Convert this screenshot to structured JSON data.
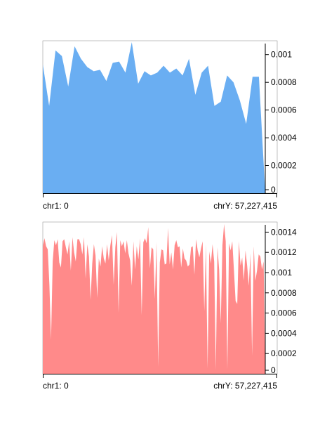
{
  "chart_data": [
    {
      "type": "area",
      "color": "#6aaef2",
      "x_start_label": "chr1: 0",
      "x_end_label": "chrY: 57,227,415",
      "ylim": [
        0,
        0.0011
      ],
      "y_ticks": [
        {
          "value": 0,
          "label": "0"
        },
        {
          "value": 0.0002,
          "label": "0.0002"
        },
        {
          "value": 0.0004,
          "label": "0.0004"
        },
        {
          "value": 0.0006,
          "label": "0.0006"
        },
        {
          "value": 0.0008,
          "label": "0.0008"
        },
        {
          "value": 0.001,
          "label": "0.001"
        }
      ],
      "values": [
        0.00093,
        0.00063,
        0.00103,
        0.00099,
        0.00077,
        0.00106,
        0.00097,
        0.00091,
        0.00088,
        0.00089,
        0.00081,
        0.00094,
        0.00095,
        0.00087,
        0.00109,
        0.00079,
        0.00088,
        0.00085,
        0.00087,
        0.00092,
        0.00087,
        0.0009,
        0.00085,
        0.00097,
        0.00071,
        0.00087,
        0.00092,
        0.00063,
        0.00066,
        0.00085,
        0.0008,
        0.00067,
        0.0005,
        0.00084,
        0.00084,
        0.0
      ]
    },
    {
      "type": "area",
      "color": "#ff8a8a",
      "x_start_label": "chr1: 0",
      "x_end_label": "chrY: 57,227,415",
      "ylim": [
        0,
        0.0015
      ],
      "y_ticks": [
        {
          "value": 0,
          "label": "0"
        },
        {
          "value": 0.0002,
          "label": "0.0002"
        },
        {
          "value": 0.0004,
          "label": "0.0004"
        },
        {
          "value": 0.0006,
          "label": "0.0006"
        },
        {
          "value": 0.0008,
          "label": "0.0008"
        },
        {
          "value": 0.001,
          "label": "0.001"
        },
        {
          "value": 0.0012,
          "label": "0.0012"
        },
        {
          "value": 0.0014,
          "label": "0.0014"
        }
      ],
      "values": [
        0.00126,
        0.00134,
        0.00126,
        0.00123,
        0.00088,
        0.00034,
        0.00111,
        0.00132,
        0.00127,
        0.00133,
        0.0011,
        0.00105,
        0.00131,
        0.00133,
        0.00125,
        0.00118,
        0.00131,
        0.00102,
        0.00135,
        0.0012,
        0.00111,
        0.00133,
        0.00133,
        0.00128,
        0.00118,
        0.00135,
        0.00094,
        0.00128,
        0.00116,
        0.00073,
        0.00109,
        0.00128,
        0.00117,
        0.00075,
        0.00114,
        0.00106,
        0.00126,
        0.00114,
        0.00109,
        0.00128,
        0.00112,
        0.00127,
        0.00137,
        0.00088,
        0.00125,
        0.0014,
        0.0006,
        0.00132,
        0.00126,
        0.00131,
        0.00119,
        0.00132,
        0.00119,
        0.00112,
        0.00087,
        0.00131,
        0.00103,
        0.00126,
        0.00113,
        0.00134,
        0.00058,
        0.0013,
        0.00134,
        0.00129,
        0.00145,
        0.00104,
        0.00125,
        0.00123,
        0.00074,
        0.0013,
        7e-05,
        0.0011,
        0.00123,
        0.00122,
        0.00108,
        0.00109,
        0.00144,
        0.00108,
        0.0012,
        0.00103,
        0.00127,
        0.00132,
        0.00125,
        0.00126,
        0.00105,
        0.00124,
        0.00114,
        0.00112,
        0.00106,
        0.00108,
        0.00125,
        0.00126,
        0.00098,
        0.00133,
        0.00122,
        0.00115,
        0.00124,
        0.00131,
        0.00062,
        0.00128,
        5e-05,
        0.00121,
        0.00109,
        0.00128,
        0.00111,
        4e-05,
        0.00125,
        0.00103,
        0.0005,
        0.00127,
        0.00148,
        0.00131,
        4e-05,
        0.00129,
        0.00122,
        0.00131,
        0.00102,
        0.00072,
        0.00069,
        0.00131,
        0.00107,
        0.00115,
        0.00092,
        0.00122,
        0.00107,
        0.00087,
        0.00119,
        0.00018,
        0.00126,
        0.00092,
        0.00102,
        0.00118,
        0.00116,
        0.00103,
        0.00111,
        0.0
      ]
    }
  ]
}
